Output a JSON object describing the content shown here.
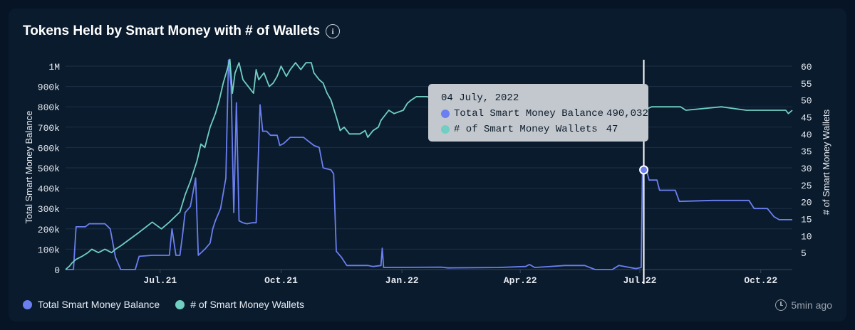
{
  "header": {
    "title": "Tokens Held by Smart Money with # of Wallets"
  },
  "chart_data": {
    "type": "line",
    "x_ticks": [
      "Jul.21",
      "Oct.21",
      "Jan.22",
      "Apr.22",
      "Jul.22",
      "Oct.22"
    ],
    "y_left_ticks": [
      "0",
      "100k",
      "200k",
      "300k",
      "400k",
      "500k",
      "600k",
      "700k",
      "800k",
      "900k",
      "1M"
    ],
    "y_right_ticks": [
      "5",
      "10",
      "15",
      "20",
      "25",
      "30",
      "35",
      "40",
      "45",
      "50",
      "55",
      "60"
    ],
    "ylabel_left": "Total Smart Money Balance",
    "ylabel_right": "# of Smart Money Wallets",
    "ylim_left": [
      0,
      1000000
    ],
    "ylim_right": [
      0,
      60
    ],
    "x_range": [
      "2021-04-20",
      "2022-10-25"
    ],
    "series": [
      {
        "name": "Total Smart Money Balance",
        "axis": "left",
        "color": "#6b7ff0",
        "points": [
          [
            "2021-04-20",
            0
          ],
          [
            "2021-04-26",
            0
          ],
          [
            "2021-04-28",
            210000
          ],
          [
            "2021-05-05",
            210000
          ],
          [
            "2021-05-08",
            225000
          ],
          [
            "2021-05-20",
            225000
          ],
          [
            "2021-05-24",
            200000
          ],
          [
            "2021-05-28",
            60000
          ],
          [
            "2021-06-01",
            0
          ],
          [
            "2021-06-12",
            0
          ],
          [
            "2021-06-15",
            65000
          ],
          [
            "2021-06-25",
            70000
          ],
          [
            "2021-07-08",
            70000
          ],
          [
            "2021-07-10",
            200000
          ],
          [
            "2021-07-13",
            70000
          ],
          [
            "2021-07-16",
            70000
          ],
          [
            "2021-07-18",
            170000
          ],
          [
            "2021-07-20",
            280000
          ],
          [
            "2021-07-24",
            310000
          ],
          [
            "2021-07-28",
            450000
          ],
          [
            "2021-07-30",
            70000
          ],
          [
            "2021-08-04",
            100000
          ],
          [
            "2021-08-08",
            130000
          ],
          [
            "2021-08-10",
            200000
          ],
          [
            "2021-08-12",
            240000
          ],
          [
            "2021-08-16",
            300000
          ],
          [
            "2021-08-20",
            450000
          ],
          [
            "2021-08-22",
            1030000
          ],
          [
            "2021-08-24",
            900000
          ],
          [
            "2021-08-26",
            280000
          ],
          [
            "2021-08-28",
            820000
          ],
          [
            "2021-08-30",
            240000
          ],
          [
            "2021-09-02",
            230000
          ],
          [
            "2021-09-05",
            225000
          ],
          [
            "2021-09-09",
            230000
          ],
          [
            "2021-09-10",
            230000
          ],
          [
            "2021-09-12",
            230000
          ],
          [
            "2021-09-15",
            810000
          ],
          [
            "2021-09-17",
            680000
          ],
          [
            "2021-09-20",
            680000
          ],
          [
            "2021-09-23",
            660000
          ],
          [
            "2021-09-28",
            660000
          ],
          [
            "2021-09-30",
            610000
          ],
          [
            "2021-10-03",
            620000
          ],
          [
            "2021-10-08",
            650000
          ],
          [
            "2021-10-18",
            650000
          ],
          [
            "2021-10-22",
            630000
          ],
          [
            "2021-10-26",
            610000
          ],
          [
            "2021-10-30",
            600000
          ],
          [
            "2021-11-02",
            500000
          ],
          [
            "2021-11-08",
            490000
          ],
          [
            "2021-11-10",
            470000
          ],
          [
            "2021-11-12",
            90000
          ],
          [
            "2021-11-16",
            60000
          ],
          [
            "2021-11-20",
            20000
          ],
          [
            "2021-12-06",
            20000
          ],
          [
            "2021-12-10",
            15000
          ],
          [
            "2021-12-16",
            20000
          ],
          [
            "2021-12-17",
            105000
          ],
          [
            "2021-12-18",
            10000
          ],
          [
            "2022-01-31",
            12000
          ],
          [
            "2022-02-05",
            8000
          ],
          [
            "2022-03-15",
            10000
          ],
          [
            "2022-04-05",
            15000
          ],
          [
            "2022-04-08",
            25000
          ],
          [
            "2022-04-12",
            10000
          ],
          [
            "2022-05-05",
            20000
          ],
          [
            "2022-05-20",
            20000
          ],
          [
            "2022-05-28",
            0
          ],
          [
            "2022-06-10",
            0
          ],
          [
            "2022-06-15",
            20000
          ],
          [
            "2022-06-28",
            5000
          ],
          [
            "2022-07-02",
            10000
          ],
          [
            "2022-07-03",
            490032
          ],
          [
            "2022-07-06",
            490000
          ],
          [
            "2022-07-08",
            440000
          ],
          [
            "2022-07-14",
            440000
          ],
          [
            "2022-07-16",
            390000
          ],
          [
            "2022-07-28",
            390000
          ],
          [
            "2022-07-31",
            335000
          ],
          [
            "2022-08-25",
            340000
          ],
          [
            "2022-09-22",
            340000
          ],
          [
            "2022-09-26",
            300000
          ],
          [
            "2022-10-06",
            300000
          ],
          [
            "2022-10-11",
            260000
          ],
          [
            "2022-10-15",
            245000
          ],
          [
            "2022-10-25",
            245000
          ]
        ]
      },
      {
        "name": "# of Smart Money Wallets",
        "axis": "right",
        "color": "#70cfc2",
        "points": [
          [
            "2021-04-20",
            0
          ],
          [
            "2021-04-23",
            1
          ],
          [
            "2021-04-25",
            2
          ],
          [
            "2021-04-28",
            3
          ],
          [
            "2021-05-03",
            4
          ],
          [
            "2021-05-07",
            5
          ],
          [
            "2021-05-10",
            6
          ],
          [
            "2021-05-15",
            5
          ],
          [
            "2021-05-20",
            6
          ],
          [
            "2021-05-25",
            5
          ],
          [
            "2021-05-28",
            6
          ],
          [
            "2021-06-01",
            7
          ],
          [
            "2021-06-08",
            9
          ],
          [
            "2021-06-15",
            11
          ],
          [
            "2021-06-25",
            14
          ],
          [
            "2021-07-02",
            12
          ],
          [
            "2021-07-08",
            14
          ],
          [
            "2021-07-16",
            17
          ],
          [
            "2021-07-20",
            22
          ],
          [
            "2021-07-24",
            26
          ],
          [
            "2021-07-29",
            32
          ],
          [
            "2021-08-01",
            37
          ],
          [
            "2021-08-04",
            36
          ],
          [
            "2021-08-08",
            42
          ],
          [
            "2021-08-12",
            46
          ],
          [
            "2021-08-15",
            50
          ],
          [
            "2021-08-18",
            55
          ],
          [
            "2021-08-21",
            59
          ],
          [
            "2021-08-23",
            62
          ],
          [
            "2021-08-25",
            52
          ],
          [
            "2021-08-27",
            58
          ],
          [
            "2021-08-30",
            61
          ],
          [
            "2021-09-02",
            56
          ],
          [
            "2021-09-06",
            54
          ],
          [
            "2021-09-10",
            52
          ],
          [
            "2021-09-12",
            59
          ],
          [
            "2021-09-14",
            56
          ],
          [
            "2021-09-18",
            58
          ],
          [
            "2021-09-22",
            54
          ],
          [
            "2021-09-25",
            55
          ],
          [
            "2021-09-28",
            57
          ],
          [
            "2021-10-01",
            60
          ],
          [
            "2021-10-05",
            57
          ],
          [
            "2021-10-08",
            59
          ],
          [
            "2021-10-12",
            61
          ],
          [
            "2021-10-16",
            59
          ],
          [
            "2021-10-20",
            61
          ],
          [
            "2021-10-24",
            61
          ],
          [
            "2021-10-26",
            58
          ],
          [
            "2021-10-30",
            56
          ],
          [
            "2021-11-02",
            55
          ],
          [
            "2021-11-05",
            52
          ],
          [
            "2021-11-08",
            50
          ],
          [
            "2021-11-12",
            45
          ],
          [
            "2021-11-15",
            41
          ],
          [
            "2021-11-18",
            42
          ],
          [
            "2021-11-22",
            40
          ],
          [
            "2021-11-30",
            40
          ],
          [
            "2021-12-04",
            41
          ],
          [
            "2021-12-06",
            39
          ],
          [
            "2021-12-10",
            41
          ],
          [
            "2021-12-14",
            42
          ],
          [
            "2021-12-16",
            44
          ],
          [
            "2021-12-22",
            47
          ],
          [
            "2021-12-26",
            46
          ],
          [
            "2022-01-02",
            47
          ],
          [
            "2022-01-05",
            49
          ],
          [
            "2022-01-08",
            50
          ],
          [
            "2022-01-12",
            51
          ],
          [
            "2022-01-20",
            51
          ],
          [
            "2022-01-28",
            50
          ],
          [
            "2022-02-01",
            51
          ],
          [
            "2022-03-15",
            51
          ],
          [
            "2022-04-20",
            51
          ],
          [
            "2022-05-20",
            51
          ],
          [
            "2022-06-15",
            50
          ],
          [
            "2022-06-25",
            50
          ],
          [
            "2022-07-02",
            47
          ],
          [
            "2022-07-04",
            47
          ],
          [
            "2022-07-10",
            48
          ],
          [
            "2022-08-01",
            48
          ],
          [
            "2022-08-05",
            47
          ],
          [
            "2022-09-01",
            48
          ],
          [
            "2022-09-20",
            47
          ],
          [
            "2022-10-20",
            47
          ],
          [
            "2022-10-22",
            46
          ],
          [
            "2022-10-25",
            47
          ]
        ]
      }
    ],
    "tooltip": {
      "date": "04 July, 2022",
      "x": "2022-07-04",
      "balance_label": "Total Smart Money Balance",
      "balance_value": "490,032",
      "balance_raw": 490032,
      "wallets_label": "# of Smart Money Wallets",
      "wallets_value": "47",
      "wallets_raw": 47
    },
    "legend": "bottom-left",
    "grid": true
  },
  "legend": [
    {
      "label": "Total Smart Money Balance",
      "color": "#6b7ff0"
    },
    {
      "label": "# of Smart Money Wallets",
      "color": "#70cfc2"
    }
  ],
  "footer": {
    "updated": "5min ago",
    "icon": "clock-refresh-icon"
  }
}
